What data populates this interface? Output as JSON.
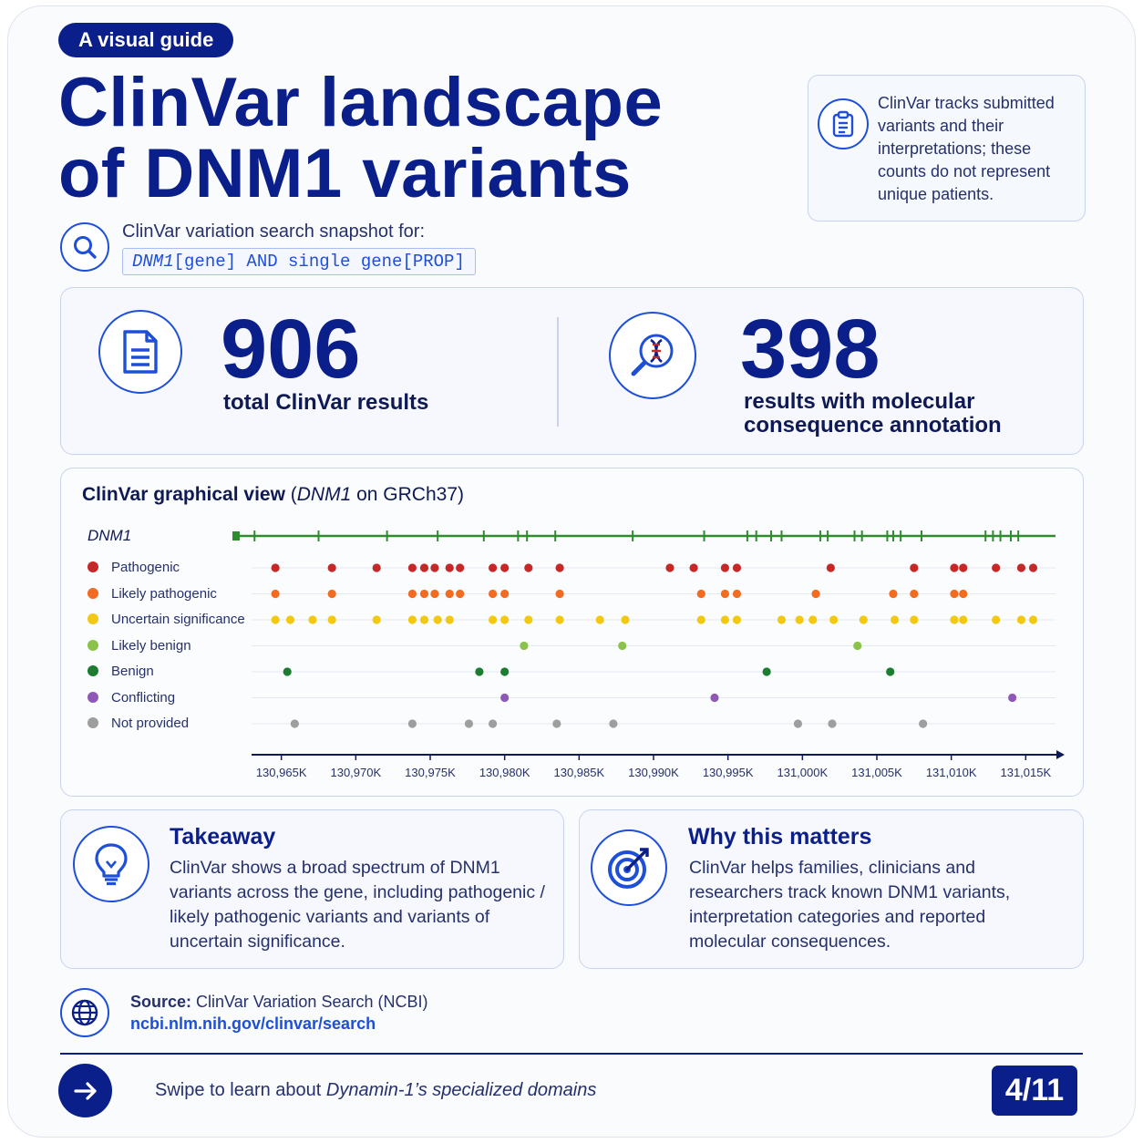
{
  "badge": "A visual guide",
  "title": {
    "line1": "ClinVar landscape",
    "line2": "of DNM1 variants"
  },
  "note": "ClinVar tracks submitted variants and their interpretations; these counts do not represent unique patients.",
  "search": {
    "label": "ClinVar variation search snapshot for:",
    "query_gene": "DNM1",
    "query_rest": "[gene] AND single gene[PROP]"
  },
  "stats": [
    {
      "value": "906",
      "label": "total ClinVar results"
    },
    {
      "value": "398",
      "label_line1": "results with molecular",
      "label_line2": "consequence annotation"
    }
  ],
  "chart": {
    "title_bold": "ClinVar graphical view",
    "title_gene": "DNM1",
    "title_rest": " on GRCh37)",
    "gene_label": "DNM1"
  },
  "chart_data": {
    "type": "scatter",
    "title": "ClinVar graphical view (DNM1 on GRCh37)",
    "x_ticks": [
      "130,965K",
      "130,970K",
      "130,975K",
      "130,980K",
      "130,985K",
      "130,990K",
      "130,995K",
      "131,000K",
      "131,005K",
      "131,010K",
      "131,015K"
    ],
    "x_tick_values": [
      130965,
      130970,
      130975,
      130980,
      130985,
      130990,
      130995,
      131000,
      131005,
      131010,
      131015
    ],
    "xlim": [
      130963,
      131017
    ],
    "x_unit": "K",
    "legend_position": "left",
    "series": [
      {
        "name": "Pathogenic",
        "color": "#c62828",
        "x": [
          130964.6,
          130968.4,
          130971.4,
          130973.8,
          130974.6,
          130975.3,
          130976.3,
          130977.0,
          130979.2,
          130980.0,
          130981.6,
          130983.7,
          130991.1,
          130992.7,
          130994.8,
          130995.6,
          131001.9,
          131007.5,
          131010.2,
          131010.8,
          131013.0,
          131014.7,
          131015.5
        ]
      },
      {
        "name": "Likely pathogenic",
        "color": "#f26b21",
        "x": [
          130964.6,
          130968.4,
          130973.8,
          130974.6,
          130975.3,
          130976.3,
          130977.0,
          130979.2,
          130980.0,
          130983.7,
          130993.2,
          130994.8,
          130995.6,
          131000.9,
          131006.1,
          131007.5,
          131010.2,
          131010.8
        ]
      },
      {
        "name": "Uncertain significance",
        "color": "#f2c811",
        "x": [
          130964.6,
          130965.6,
          130967.1,
          130968.4,
          130971.4,
          130973.8,
          130974.6,
          130975.5,
          130976.3,
          130979.2,
          130980.0,
          130981.6,
          130983.7,
          130986.4,
          130988.1,
          130993.2,
          130994.8,
          130995.6,
          130998.6,
          130999.8,
          131000.7,
          131002.1,
          131004.1,
          131006.2,
          131007.5,
          131010.2,
          131010.8,
          131013.0,
          131014.7,
          131015.5
        ]
      },
      {
        "name": "Likely benign",
        "color": "#8bc34a",
        "x": [
          130981.3,
          130987.9,
          131003.7
        ]
      },
      {
        "name": "Benign",
        "color": "#1b7d2f",
        "x": [
          130965.4,
          130978.3,
          130980.0,
          130997.6,
          131005.9
        ]
      },
      {
        "name": "Conflicting",
        "color": "#8e58b6",
        "x": [
          130980.0,
          130994.1,
          131014.1
        ]
      },
      {
        "name": "Not provided",
        "color": "#9e9e9e",
        "x": [
          130965.9,
          130973.8,
          130977.6,
          130979.2,
          130983.5,
          130987.3,
          130999.7,
          131002.0,
          131008.1
        ]
      }
    ],
    "gene_track_markers": [
      130963.2,
      130967.5,
      130972.1,
      130975.5,
      130978.6,
      130980.9,
      130981.5,
      130983.4,
      130988.6,
      130993.4,
      130996.3,
      130996.9,
      130997.9,
      130998.6,
      131001.2,
      131001.7,
      131003.5,
      131004.0,
      131005.7,
      131006.1,
      131006.6,
      131008.0,
      131012.3,
      131012.8,
      131013.3,
      131014.0,
      131014.5
    ]
  },
  "takeaway": {
    "heading": "Takeaway",
    "lines": [
      "ClinVar shows a broad spectrum of DNM1",
      "variants across the gene, including pathogenic /",
      "likely pathogenic variants and variants of",
      "uncertain significance."
    ]
  },
  "why": {
    "heading": "Why this matters",
    "lines": [
      "ClinVar helps families, clinicians and",
      "researchers track known DNM1 variants,",
      "interpretation categories and reported",
      "molecular consequences."
    ]
  },
  "source": {
    "label": "Source:",
    "text": "ClinVar Variation Search (NCBI)",
    "link": "ncbi.nlm.nih.gov/clinvar/search"
  },
  "footer": {
    "swipe_prefix": "Swipe to learn about ",
    "swipe_italic": "Dynamin-1’s specialized domains",
    "page": "4/11"
  },
  "colors": {
    "navy": "#0b1f8a",
    "accent": "#1e4fd8",
    "gene_track": "#2e8b2e"
  },
  "icons": [
    "clipboard-icon",
    "search-icon",
    "document-icon",
    "dna-search-icon",
    "lightbulb-icon",
    "target-icon",
    "globe-icon",
    "arrow-right-icon"
  ]
}
